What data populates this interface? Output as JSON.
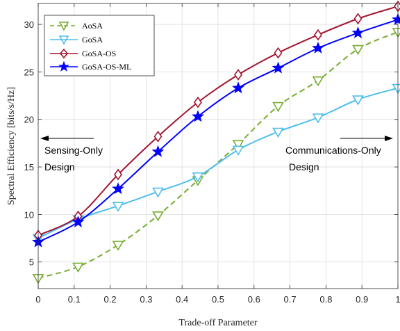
{
  "chart_data": {
    "type": "line",
    "title": "",
    "xlabel": "Trade-off Parameter",
    "ylabel": "Spectral Efficiency [bits/s/Hz]",
    "xlim": [
      0,
      1
    ],
    "ylim": [
      2.2,
      32.2
    ],
    "xticks": [
      0,
      0.1,
      0.2,
      0.3,
      0.4,
      0.5,
      0.6,
      0.7,
      0.8,
      0.9,
      1
    ],
    "xtick_labels": [
      "0",
      "0.1",
      "0.2",
      "0.3",
      "0.4",
      "0.5",
      "0.6",
      "0.7",
      "0.8",
      "0.9",
      "1"
    ],
    "yticks": [
      5,
      10,
      15,
      20,
      25,
      30
    ],
    "ytick_labels": [
      "5",
      "10",
      "15",
      "20",
      "25",
      "30"
    ],
    "grid": true,
    "legend_position": "top-left",
    "x": [
      0,
      0.111,
      0.222,
      0.333,
      0.444,
      0.556,
      0.667,
      0.778,
      0.889,
      1
    ],
    "series": [
      {
        "name": "AoSA",
        "color": "#77ac30",
        "dashed": true,
        "marker": "triangle-down",
        "values": [
          3.3,
          4.5,
          6.8,
          9.9,
          13.6,
          17.4,
          21.4,
          24.1,
          27.4,
          29.2
        ]
      },
      {
        "name": "GoSA",
        "color": "#4dbeee",
        "dashed": false,
        "marker": "triangle-down",
        "values": [
          7.5,
          9.5,
          10.9,
          12.4,
          14.0,
          16.8,
          18.7,
          20.2,
          22.1,
          23.3
        ]
      },
      {
        "name": "GoSA-OS",
        "color": "#a2142f",
        "dashed": false,
        "marker": "diamond",
        "values": [
          7.8,
          9.8,
          14.2,
          18.2,
          21.8,
          24.7,
          27.0,
          28.9,
          30.6,
          31.9
        ]
      },
      {
        "name": "GoSA-OS-ML",
        "color": "#0000ff",
        "dashed": false,
        "marker": "star",
        "values": [
          7.1,
          9.2,
          12.7,
          16.6,
          20.3,
          23.3,
          25.4,
          27.5,
          29.1,
          30.5
        ]
      }
    ],
    "annotations": [
      {
        "lines": [
          "Sensing-Only",
          "Design"
        ],
        "arrow": "left"
      },
      {
        "lines": [
          "Communications-Only",
          "Design"
        ],
        "arrow": "right"
      }
    ]
  }
}
